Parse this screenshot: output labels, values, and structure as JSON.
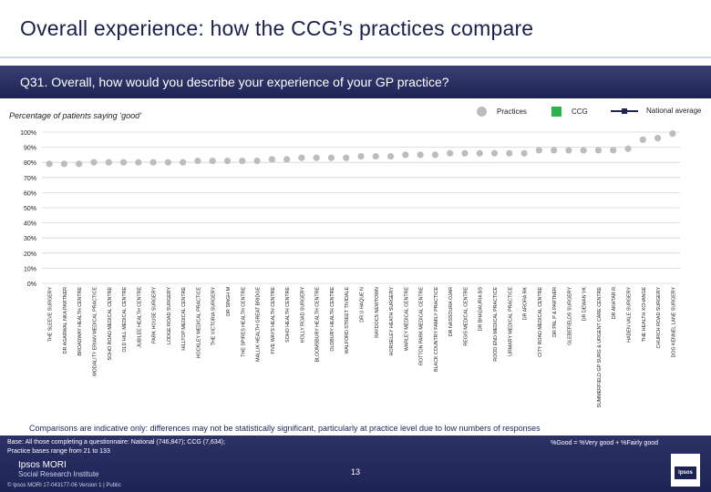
{
  "header": {
    "title": "Overall experience: how the CCG’s practices compare",
    "question": "Q31. Overall, how would you describe your experience of your GP practice?"
  },
  "subtitle": "Percentage of patients saying ‘good’",
  "legend": {
    "practices": "Practices",
    "ccg": "CCG",
    "national": "National average"
  },
  "colors": {
    "practice_dot": "#bcbcbc",
    "ccg": "#2db34a",
    "national": "#1e2356",
    "grid": "#d4d4d4"
  },
  "chart_data": {
    "type": "scatter",
    "title": "",
    "ylabel": "",
    "ylim": [
      0,
      100
    ],
    "yticks": [
      "0%",
      "10%",
      "20%",
      "30%",
      "40%",
      "50%",
      "60%",
      "70%",
      "80%",
      "90%",
      "100%"
    ],
    "grid": true,
    "legend_position": "top-right",
    "categories": [
      "THE SLEEVE SURGERY",
      "DR AGARWAL NKA PARTNER",
      "BROADWAY HEALTH CENTRE",
      "MODALITY ERIAN MEDICAL PRACTICE",
      "SOHO ROAD MEDICAL CENTRE",
      "OLD HILL MEDICAL CENTRE",
      "JUBILEE HEALTH CENTRE",
      "PARK HOUSE SURGERY",
      "LODGE ROAD SURGERY",
      "HILLTOP MEDICAL CENTRE",
      "HOCKLEY MEDICAL PRACTICE",
      "THE VICTORIA SURGERY",
      "DR SINGH M",
      "THE SPIRES HEALTH CENTRE",
      "MALLIK HEALTH GREAT BRIDGE",
      "FIVE WAYS HEALTH CENTRE",
      "SOHO HEALTH CENTRE",
      "HOLLY ROAD SURGERY",
      "BLOOMSBURY HEALTH CENTRE",
      "OLDBURY HEALTH CENTRE",
      "WALFORD STREET TIVIDALE",
      "DR U HAQUE N",
      "RAYDOCS NEWTOWN",
      "HORSELEY HEATH SURGERY",
      "WARLEY MEDICAL CENTRE",
      "ROTTON PARK MEDICAL CENTRE",
      "BLACK COUNTRY FAMILY PRACTICE",
      "DR NASSOURA OJAR",
      "REGIS MEDICAL CENTRE",
      "DR BHADAURIA BS",
      "ROOD END MEDICAL PRACTICE",
      "URMARY MEDICAL PRACTICE",
      "DR ARORA RK",
      "CITY ROAD MEDICAL CENTRE",
      "DR PAL P & PARTNER",
      "GLEBEFIELDS SURGERY",
      "DR DEWAN VK",
      "SUMMERFIELD GP SURG & URGENT CARE CENTRE",
      "DR AKHTAR R",
      "HADEN VALE SURGERY",
      "THE HEALTH XCHANGE",
      "CHURCH ROAD SURGERY",
      "DOG KENNEL LANE SURGERY"
    ],
    "series": [
      {
        "name": "Practices",
        "values": [
          79,
          79,
          79,
          80,
          80,
          80,
          80,
          80,
          80,
          80,
          81,
          81,
          81,
          81,
          81,
          82,
          82,
          83,
          83,
          83,
          83,
          84,
          84,
          84,
          85,
          85,
          85,
          86,
          86,
          86,
          86,
          86,
          86,
          88,
          88,
          88,
          88,
          88,
          88,
          89,
          95,
          96,
          99
        ]
      }
    ]
  },
  "note": "Comparisons are indicative only: differences may not be statistically significant, particularly at practice level due to low numbers of responses",
  "footer": {
    "base_line1": "Base: All those completing a questionnaire: National (746,847); CCG (7,634);",
    "base_line2": "Practice bases range from 21 to 133",
    "key": "%Good = %Very good + %Fairly good",
    "logo_name": "Ipsos MORI",
    "logo_sub": "Social Research Institute",
    "page": "13",
    "copyright": "© Ipsos MORI     17-043177-06 Version 1 | Public",
    "logo_right": "Ipsos"
  }
}
